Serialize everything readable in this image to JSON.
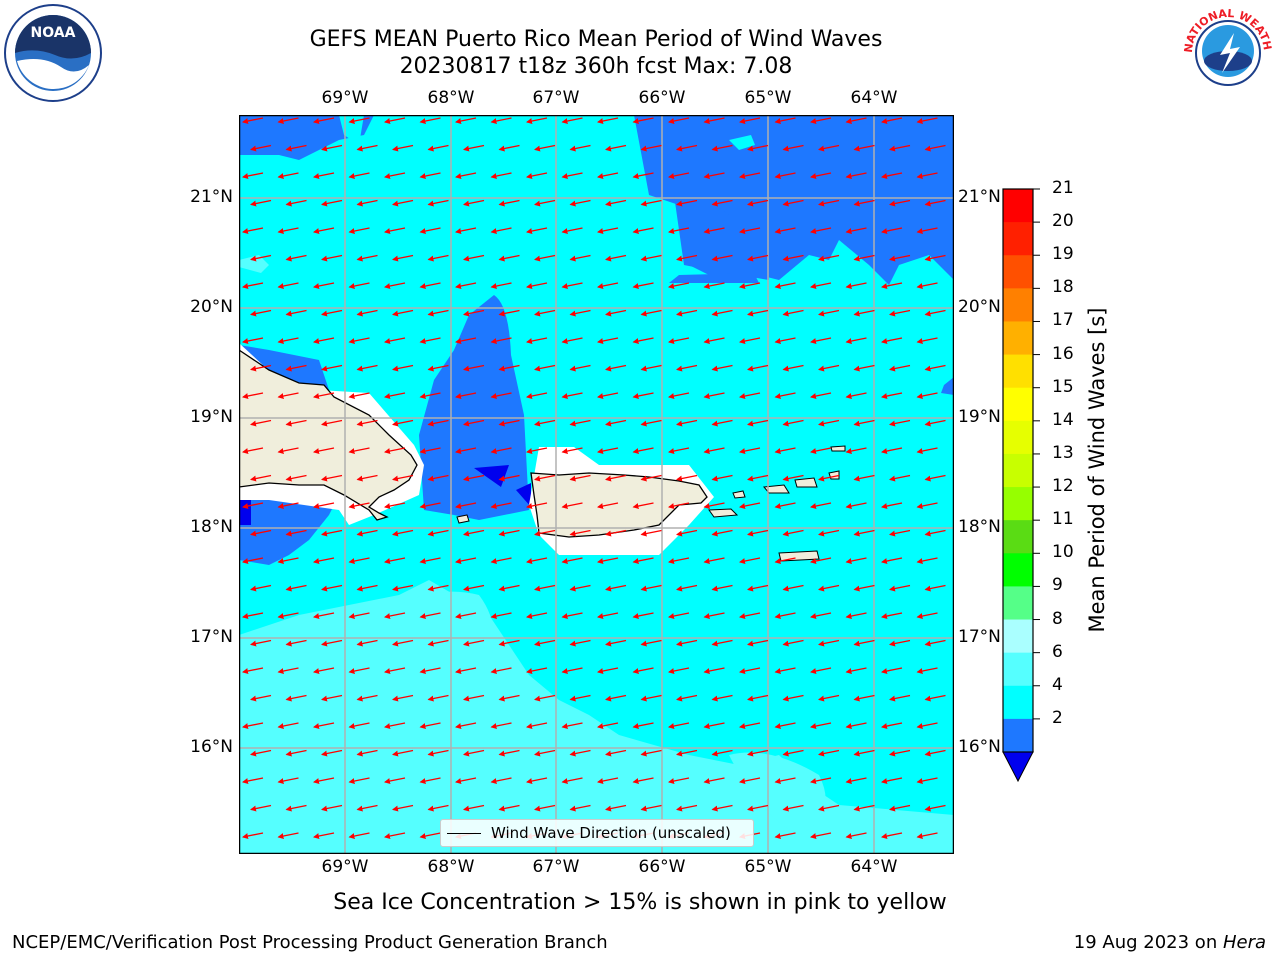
{
  "title": {
    "line1": "GEFS MEAN Puerto Rico Mean Period of Wind Waves",
    "line2": "20230817 t18z 360h fcst   Max: 7.08"
  },
  "logos": {
    "left": "NOAA",
    "right": "NATIONAL WEATHER SERVICE"
  },
  "map": {
    "lon_labels": [
      "69°W",
      "68°W",
      "67°W",
      "66°W",
      "65°W",
      "64°W"
    ],
    "lat_labels": [
      "21°N",
      "20°N",
      "19°N",
      "18°N",
      "17°N",
      "16°N"
    ],
    "legend_label": "Wind Wave Direction (unscaled)",
    "colors": {
      "land": "#f0eedc",
      "coast": "#000000",
      "period_2_4": "#1e78ff",
      "period_4_6": "#00ffff",
      "period_6_8": "#55ffff",
      "period_lt_2": "#0000ee",
      "arrows": "#ff0000",
      "grid": "#b0b0b0"
    }
  },
  "colorbar": {
    "title": "Mean Period of Wind Waves [s]",
    "labels": [
      "21",
      "20",
      "19",
      "18",
      "17",
      "16",
      "15",
      "14",
      "13",
      "12",
      "11",
      "10",
      "9",
      "8",
      "6",
      "4",
      "2"
    ],
    "colors": [
      "#ff0000",
      "#ff2000",
      "#ff5000",
      "#ff8000",
      "#ffb000",
      "#ffe000",
      "#ffff00",
      "#e6ff00",
      "#c8ff00",
      "#96ff00",
      "#5adc14",
      "#00ff00",
      "#55ff88",
      "#aaffff",
      "#55ffff",
      "#00ffff",
      "#1e78ff"
    ],
    "under_color": "#0000ee"
  },
  "subtitle": "Sea Ice Concentration > 15% is shown in pink to yellow",
  "footer": {
    "left": "NCEP/EMC/Verification Post Processing Product Generation Branch",
    "right_date": "19 Aug 2023 on ",
    "right_machine": "Hera"
  }
}
